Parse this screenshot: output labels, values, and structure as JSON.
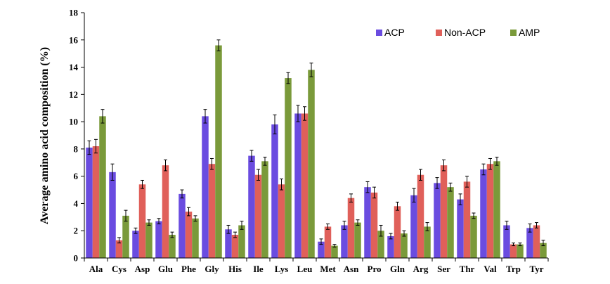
{
  "chart_data": {
    "type": "bar",
    "ylabel": "Average amino acid composition (%)",
    "xlabel": "",
    "ylim": [
      0,
      18
    ],
    "yticks": [
      0,
      2,
      4,
      6,
      8,
      10,
      12,
      14,
      16,
      18
    ],
    "grid": false,
    "legend_position": "top-right",
    "categories": [
      "Ala",
      "Cys",
      "Asp",
      "Glu",
      "Phe",
      "Gly",
      "His",
      "Ile",
      "Lys",
      "Leu",
      "Met",
      "Asn",
      "Pro",
      "Gln",
      "Arg",
      "Ser",
      "Thr",
      "Val",
      "Trp",
      "Tyr"
    ],
    "series": [
      {
        "name": "ACP",
        "color": "#6a4ce0",
        "values": [
          8.1,
          6.3,
          2.0,
          2.7,
          4.7,
          10.4,
          2.1,
          7.5,
          9.8,
          10.6,
          1.2,
          2.4,
          5.2,
          1.6,
          4.6,
          5.5,
          4.3,
          6.5,
          2.4,
          2.2
        ],
        "errors": [
          0.5,
          0.6,
          0.2,
          0.2,
          0.3,
          0.5,
          0.3,
          0.4,
          0.7,
          0.6,
          0.2,
          0.3,
          0.4,
          0.2,
          0.5,
          0.4,
          0.4,
          0.4,
          0.3,
          0.3
        ]
      },
      {
        "name": "Non-ACP",
        "color": "#e0605a",
        "values": [
          8.2,
          1.3,
          5.4,
          6.8,
          3.4,
          6.9,
          1.7,
          6.1,
          5.4,
          10.6,
          2.3,
          4.4,
          4.8,
          3.8,
          6.1,
          6.8,
          5.6,
          6.9,
          1.0,
          2.4
        ],
        "errors": [
          0.5,
          0.2,
          0.3,
          0.4,
          0.3,
          0.4,
          0.2,
          0.4,
          0.4,
          0.5,
          0.2,
          0.3,
          0.4,
          0.3,
          0.4,
          0.4,
          0.4,
          0.4,
          0.1,
          0.2
        ]
      },
      {
        "name": "AMP",
        "color": "#7a9a3a",
        "values": [
          10.4,
          3.1,
          2.6,
          1.7,
          2.9,
          15.6,
          2.4,
          7.1,
          13.2,
          13.8,
          0.9,
          2.6,
          2.0,
          1.8,
          2.3,
          5.2,
          3.1,
          7.1,
          1.0,
          1.1
        ],
        "errors": [
          0.5,
          0.4,
          0.2,
          0.2,
          0.2,
          0.4,
          0.3,
          0.3,
          0.4,
          0.5,
          0.1,
          0.2,
          0.4,
          0.2,
          0.3,
          0.3,
          0.2,
          0.3,
          0.1,
          0.2
        ]
      }
    ]
  }
}
